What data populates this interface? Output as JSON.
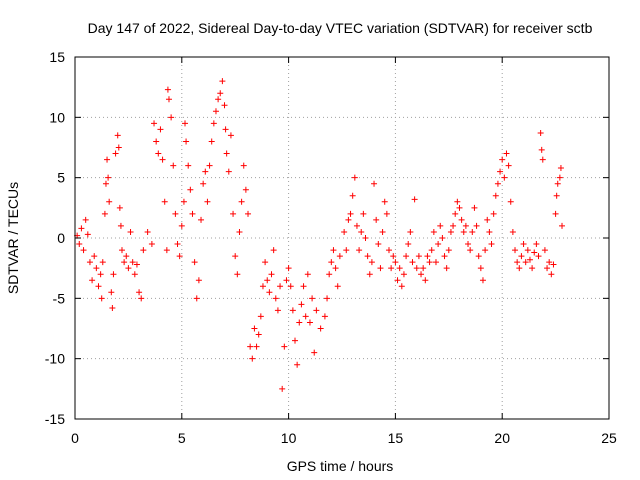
{
  "chart_data": {
    "type": "scatter",
    "title": "Day 147 of 2022, Sidereal Day-to-day VTEC variation (SDTVAR) for receiver sctb",
    "xlabel": "GPS time / hours",
    "ylabel": "SDTVAR / TECUs",
    "xlim": [
      0,
      25
    ],
    "ylim": [
      -15,
      15
    ],
    "xticks": [
      0,
      5,
      10,
      15,
      20,
      25
    ],
    "yticks": [
      -15,
      -10,
      -5,
      0,
      5,
      10,
      15
    ],
    "xtick_labels": [
      "0",
      "5",
      "10",
      "15",
      "20",
      "25"
    ],
    "ytick_labels": [
      "-15",
      "-10",
      "-5",
      "0",
      "5",
      "10",
      "15"
    ],
    "grid": true,
    "marker": "+",
    "series": [
      {
        "name": "SDTVAR",
        "color": "#ff0000",
        "points": [
          [
            0.1,
            0.2
          ],
          [
            0.2,
            -0.5
          ],
          [
            0.3,
            0.8
          ],
          [
            0.4,
            -1.0
          ],
          [
            0.5,
            1.5
          ],
          [
            0.6,
            0.3
          ],
          [
            0.7,
            -2.0
          ],
          [
            0.8,
            -3.5
          ],
          [
            0.9,
            -1.5
          ],
          [
            1.0,
            -2.5
          ],
          [
            1.1,
            -4.0
          ],
          [
            1.2,
            -3.0
          ],
          [
            1.25,
            -5.0
          ],
          [
            1.3,
            -2.0
          ],
          [
            1.4,
            2.0
          ],
          [
            1.45,
            4.5
          ],
          [
            1.5,
            6.5
          ],
          [
            1.55,
            5.0
          ],
          [
            1.6,
            3.0
          ],
          [
            1.7,
            -4.5
          ],
          [
            1.75,
            -5.8
          ],
          [
            1.8,
            -3.0
          ],
          [
            1.9,
            7.0
          ],
          [
            2.0,
            8.5
          ],
          [
            2.05,
            7.5
          ],
          [
            2.1,
            2.5
          ],
          [
            2.15,
            1.0
          ],
          [
            2.2,
            -1.0
          ],
          [
            2.3,
            -2.0
          ],
          [
            2.4,
            -1.5
          ],
          [
            2.5,
            -2.5
          ],
          [
            2.6,
            0.5
          ],
          [
            2.7,
            -2.0
          ],
          [
            2.8,
            -3.0
          ],
          [
            2.9,
            -2.2
          ],
          [
            3.0,
            -4.5
          ],
          [
            3.1,
            -5.0
          ],
          [
            3.2,
            -1.0
          ],
          [
            3.4,
            0.5
          ],
          [
            3.6,
            -0.5
          ],
          [
            3.7,
            9.5
          ],
          [
            3.8,
            8.0
          ],
          [
            3.9,
            7.0
          ],
          [
            4.0,
            9.0
          ],
          [
            4.1,
            6.5
          ],
          [
            4.2,
            3.0
          ],
          [
            4.3,
            -1.0
          ],
          [
            4.35,
            12.3
          ],
          [
            4.4,
            11.5
          ],
          [
            4.5,
            10.0
          ],
          [
            4.6,
            6.0
          ],
          [
            4.7,
            2.0
          ],
          [
            4.8,
            -0.5
          ],
          [
            4.9,
            -1.5
          ],
          [
            5.0,
            1.0
          ],
          [
            5.1,
            3.0
          ],
          [
            5.15,
            9.5
          ],
          [
            5.2,
            8.0
          ],
          [
            5.3,
            6.0
          ],
          [
            5.4,
            4.0
          ],
          [
            5.5,
            2.0
          ],
          [
            5.6,
            -2.0
          ],
          [
            5.7,
            -5.0
          ],
          [
            5.8,
            -3.5
          ],
          [
            5.9,
            1.5
          ],
          [
            6.0,
            4.5
          ],
          [
            6.1,
            5.5
          ],
          [
            6.2,
            3.0
          ],
          [
            6.3,
            6.0
          ],
          [
            6.4,
            8.0
          ],
          [
            6.5,
            9.5
          ],
          [
            6.6,
            10.5
          ],
          [
            6.7,
            11.5
          ],
          [
            6.8,
            12.0
          ],
          [
            6.9,
            13.0
          ],
          [
            7.0,
            11.0
          ],
          [
            7.05,
            9.0
          ],
          [
            7.1,
            7.0
          ],
          [
            7.2,
            5.5
          ],
          [
            7.3,
            8.5
          ],
          [
            7.4,
            2.0
          ],
          [
            7.5,
            -1.5
          ],
          [
            7.6,
            -3.0
          ],
          [
            7.7,
            0.5
          ],
          [
            7.8,
            3.0
          ],
          [
            7.9,
            6.0
          ],
          [
            8.0,
            4.0
          ],
          [
            8.1,
            2.0
          ],
          [
            8.2,
            -9.0
          ],
          [
            8.3,
            -10.0
          ],
          [
            8.4,
            -7.5
          ],
          [
            8.5,
            -9.0
          ],
          [
            8.6,
            -8.0
          ],
          [
            8.7,
            -6.5
          ],
          [
            8.8,
            -4.0
          ],
          [
            8.9,
            -2.0
          ],
          [
            9.0,
            -3.5
          ],
          [
            9.1,
            -4.5
          ],
          [
            9.2,
            -3.0
          ],
          [
            9.3,
            -1.0
          ],
          [
            9.4,
            -5.0
          ],
          [
            9.5,
            -6.0
          ],
          [
            9.6,
            -4.0
          ],
          [
            9.7,
            -12.5
          ],
          [
            9.8,
            -9.0
          ],
          [
            9.9,
            -3.5
          ],
          [
            10.0,
            -2.5
          ],
          [
            10.1,
            -4.0
          ],
          [
            10.2,
            -6.0
          ],
          [
            10.3,
            -8.5
          ],
          [
            10.4,
            -10.5
          ],
          [
            10.5,
            -7.0
          ],
          [
            10.6,
            -5.5
          ],
          [
            10.7,
            -4.0
          ],
          [
            10.8,
            -6.5
          ],
          [
            10.9,
            -3.0
          ],
          [
            11.0,
            -7.0
          ],
          [
            11.1,
            -5.0
          ],
          [
            11.2,
            -9.5
          ],
          [
            11.3,
            -6.0
          ],
          [
            11.5,
            -7.5
          ],
          [
            11.7,
            -6.5
          ],
          [
            11.8,
            -5.0
          ],
          [
            11.9,
            -3.0
          ],
          [
            12.0,
            -2.0
          ],
          [
            12.1,
            -1.0
          ],
          [
            12.2,
            -2.5
          ],
          [
            12.3,
            -4.0
          ],
          [
            12.4,
            -1.5
          ],
          [
            12.6,
            0.5
          ],
          [
            12.7,
            -1.0
          ],
          [
            12.8,
            1.5
          ],
          [
            12.9,
            2.0
          ],
          [
            13.0,
            3.5
          ],
          [
            13.1,
            5.0
          ],
          [
            13.2,
            1.0
          ],
          [
            13.3,
            -1.0
          ],
          [
            13.4,
            0.5
          ],
          [
            13.5,
            2.0
          ],
          [
            13.6,
            0.0
          ],
          [
            13.7,
            -1.5
          ],
          [
            13.8,
            -3.0
          ],
          [
            13.9,
            -2.0
          ],
          [
            14.0,
            4.5
          ],
          [
            14.1,
            1.5
          ],
          [
            14.2,
            -0.5
          ],
          [
            14.3,
            -2.5
          ],
          [
            14.4,
            0.5
          ],
          [
            14.5,
            3.0
          ],
          [
            14.6,
            2.0
          ],
          [
            14.7,
            -1.0
          ],
          [
            14.8,
            -2.5
          ],
          [
            14.9,
            -1.5
          ],
          [
            15.0,
            -2.0
          ],
          [
            15.1,
            -3.5
          ],
          [
            15.2,
            -2.5
          ],
          [
            15.3,
            -4.0
          ],
          [
            15.4,
            -3.0
          ],
          [
            15.5,
            -1.5
          ],
          [
            15.6,
            -0.5
          ],
          [
            15.7,
            0.5
          ],
          [
            15.8,
            -2.0
          ],
          [
            15.9,
            3.2
          ],
          [
            16.0,
            -2.5
          ],
          [
            16.1,
            -1.5
          ],
          [
            16.2,
            -3.0
          ],
          [
            16.3,
            -2.5
          ],
          [
            16.4,
            -3.5
          ],
          [
            16.5,
            -1.5
          ],
          [
            16.6,
            -2.0
          ],
          [
            16.7,
            -1.0
          ],
          [
            16.8,
            0.5
          ],
          [
            16.9,
            -2.0
          ],
          [
            17.0,
            -0.5
          ],
          [
            17.1,
            1.0
          ],
          [
            17.2,
            0.0
          ],
          [
            17.3,
            -1.5
          ],
          [
            17.4,
            -2.5
          ],
          [
            17.5,
            -1.0
          ],
          [
            17.6,
            0.5
          ],
          [
            17.7,
            1.0
          ],
          [
            17.8,
            2.0
          ],
          [
            17.9,
            3.0
          ],
          [
            18.0,
            2.5
          ],
          [
            18.1,
            1.5
          ],
          [
            18.2,
            0.5
          ],
          [
            18.3,
            1.0
          ],
          [
            18.4,
            -0.5
          ],
          [
            18.5,
            -1.0
          ],
          [
            18.6,
            0.5
          ],
          [
            18.7,
            2.5
          ],
          [
            18.8,
            1.0
          ],
          [
            18.9,
            -1.5
          ],
          [
            19.0,
            -2.5
          ],
          [
            19.1,
            -3.5
          ],
          [
            19.2,
            -1.0
          ],
          [
            19.3,
            1.5
          ],
          [
            19.4,
            0.5
          ],
          [
            19.5,
            -0.5
          ],
          [
            19.6,
            2.0
          ],
          [
            19.7,
            3.5
          ],
          [
            19.8,
            4.5
          ],
          [
            19.9,
            5.5
          ],
          [
            20.0,
            6.5
          ],
          [
            20.1,
            5.0
          ],
          [
            20.2,
            7.0
          ],
          [
            20.3,
            6.0
          ],
          [
            20.4,
            3.0
          ],
          [
            20.5,
            0.5
          ],
          [
            20.6,
            -1.0
          ],
          [
            20.7,
            -2.0
          ],
          [
            20.8,
            -2.5
          ],
          [
            20.9,
            -1.5
          ],
          [
            21.0,
            -0.5
          ],
          [
            21.1,
            -2.0
          ],
          [
            21.2,
            -1.0
          ],
          [
            21.3,
            -1.8
          ],
          [
            21.4,
            -2.5
          ],
          [
            21.5,
            -1.2
          ],
          [
            21.6,
            -0.5
          ],
          [
            21.7,
            -1.5
          ],
          [
            21.8,
            8.7
          ],
          [
            21.85,
            7.3
          ],
          [
            21.9,
            6.5
          ],
          [
            22.0,
            -1.0
          ],
          [
            22.1,
            -2.5
          ],
          [
            22.2,
            -2.0
          ],
          [
            22.3,
            -3.0
          ],
          [
            22.4,
            -2.2
          ],
          [
            22.5,
            2.0
          ],
          [
            22.55,
            3.5
          ],
          [
            22.6,
            4.5
          ],
          [
            22.7,
            5.0
          ],
          [
            22.75,
            5.8
          ],
          [
            22.8,
            1.0
          ]
        ]
      }
    ]
  }
}
